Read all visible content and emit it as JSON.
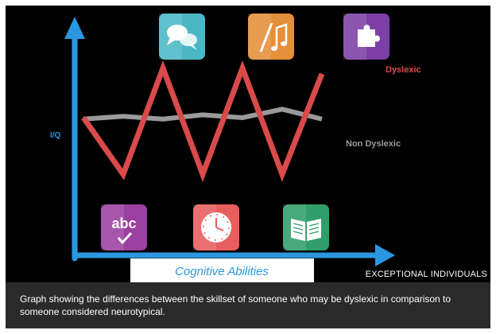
{
  "chart_data": {
    "type": "line",
    "xlabel": "Cognitive Abilities",
    "ylabel": "I/Q",
    "ylim": [
      0,
      10
    ],
    "grid": false,
    "legend": "inline-right",
    "x": [
      0,
      1,
      2,
      3,
      4,
      5,
      6
    ],
    "series": [
      {
        "name": "Dyslexic",
        "color": "#d94a4a",
        "values": [
          5.9,
          1.9,
          9.4,
          1.9,
          9.4,
          1.9,
          9.0
        ]
      },
      {
        "name": "Non Dyslexic",
        "color": "#9a9a9a",
        "values": [
          5.8,
          6.0,
          5.8,
          6.1,
          5.9,
          6.5,
          5.8
        ]
      }
    ],
    "icons": {
      "top": [
        {
          "name": "speech-bubbles-icon",
          "color": "#4ab8c4"
        },
        {
          "name": "art-music-icon",
          "color": "#e58f3a"
        },
        {
          "name": "puzzle-icon",
          "color": "#7b3fa6"
        }
      ],
      "bottom": [
        {
          "name": "abc-check-icon",
          "color": "#9b3fa0",
          "text": "abc"
        },
        {
          "name": "clock-icon",
          "color": "#e85e5e"
        },
        {
          "name": "book-icon",
          "color": "#2f9e6a"
        }
      ]
    }
  },
  "branding": {
    "text": "EXCEPTIONAL INDIVIDUALS"
  },
  "caption": {
    "text": "Graph showing the differences between the skillset of someone who may be dyslexic in comparison to someone considered neurotypical."
  },
  "colors": {
    "axis": "#2b97e0",
    "background": "#000000",
    "caption_bg": "#2a2a2a"
  }
}
